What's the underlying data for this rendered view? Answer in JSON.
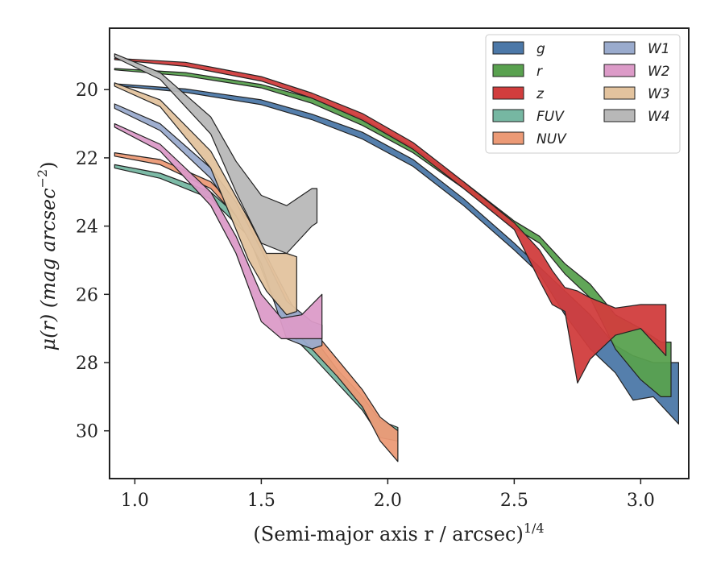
{
  "chart_data": {
    "type": "area",
    "xlabel": "(Semi-major axis r / arcsec)",
    "xlabel_exponent": "1/4",
    "ylabel": "μ(r) (mag arcsec",
    "ylabel_exponent": "−2",
    "ylabel_suffix": ")",
    "xlim": [
      0.9,
      3.19
    ],
    "ylim": [
      31.4,
      18.2
    ],
    "y_inverted": true,
    "x_ticks": [
      "1.0",
      "1.5",
      "2.0",
      "2.5",
      "3.0"
    ],
    "y_ticks": [
      "20",
      "22",
      "24",
      "26",
      "28",
      "30"
    ],
    "legend_placement": "top-right",
    "legend_columns": 2,
    "series": [
      {
        "name": "g",
        "color": "#4c78a8",
        "points": [
          [
            0.92,
            19.83,
            19.88
          ],
          [
            1.2,
            19.98,
            20.08
          ],
          [
            1.5,
            20.3,
            20.44
          ],
          [
            1.7,
            20.72,
            20.88
          ],
          [
            1.9,
            21.25,
            21.45
          ],
          [
            2.1,
            22.05,
            22.25
          ],
          [
            2.3,
            23.2,
            23.4
          ],
          [
            2.5,
            24.5,
            24.7
          ],
          [
            2.6,
            25.2,
            25.4
          ],
          [
            2.7,
            25.9,
            26.6
          ],
          [
            2.8,
            26.6,
            27.6
          ],
          [
            2.9,
            27.5,
            28.3
          ],
          [
            2.97,
            27.8,
            29.1
          ],
          [
            3.05,
            28.0,
            29.0
          ],
          [
            3.15,
            28.0,
            29.8
          ]
        ]
      },
      {
        "name": "r",
        "color": "#59a14f",
        "points": [
          [
            0.92,
            19.38,
            19.42
          ],
          [
            1.2,
            19.5,
            19.6
          ],
          [
            1.5,
            19.85,
            19.95
          ],
          [
            1.7,
            20.25,
            20.4
          ],
          [
            1.9,
            20.85,
            21.05
          ],
          [
            2.1,
            21.7,
            21.85
          ],
          [
            2.3,
            22.7,
            22.9
          ],
          [
            2.5,
            23.85,
            24.05
          ],
          [
            2.6,
            24.3,
            24.5
          ],
          [
            2.7,
            25.1,
            25.4
          ],
          [
            2.8,
            25.7,
            26.1
          ],
          [
            2.9,
            26.6,
            27.6
          ],
          [
            3.0,
            27.0,
            28.5
          ],
          [
            3.08,
            27.4,
            29.0
          ],
          [
            3.12,
            27.4,
            29.0
          ]
        ]
      },
      {
        "name": "z",
        "color": "#d13d3d",
        "points": [
          [
            0.92,
            19.08,
            19.12
          ],
          [
            1.2,
            19.2,
            19.32
          ],
          [
            1.5,
            19.62,
            19.75
          ],
          [
            1.7,
            20.1,
            20.25
          ],
          [
            1.9,
            20.7,
            20.9
          ],
          [
            2.1,
            21.55,
            21.75
          ],
          [
            2.3,
            22.7,
            22.9
          ],
          [
            2.5,
            23.9,
            24.1
          ],
          [
            2.6,
            24.7,
            25.6
          ],
          [
            2.65,
            25.3,
            26.3
          ],
          [
            2.7,
            25.8,
            26.5
          ],
          [
            2.75,
            25.9,
            28.6
          ],
          [
            2.8,
            26.1,
            27.9
          ],
          [
            2.9,
            26.4,
            27.2
          ],
          [
            3.0,
            26.3,
            27.0
          ],
          [
            3.1,
            26.3,
            27.8
          ]
        ]
      },
      {
        "name": "FUV",
        "color": "#76b7a2",
        "points": [
          [
            0.92,
            22.2,
            22.3
          ],
          [
            1.1,
            22.45,
            22.6
          ],
          [
            1.3,
            23.0,
            23.2
          ],
          [
            1.45,
            24.0,
            24.3
          ],
          [
            1.55,
            25.5,
            26.2
          ],
          [
            1.62,
            26.4,
            27.2
          ],
          [
            1.7,
            27.2,
            27.8
          ],
          [
            1.8,
            28.2,
            28.6
          ],
          [
            1.9,
            29.0,
            29.4
          ],
          [
            1.97,
            29.7,
            30.2
          ],
          [
            2.04,
            29.9,
            30.3
          ]
        ]
      },
      {
        "name": "NUV",
        "color": "#ec9a76",
        "points": [
          [
            0.92,
            21.85,
            21.95
          ],
          [
            1.1,
            22.05,
            22.2
          ],
          [
            1.3,
            22.7,
            22.9
          ],
          [
            1.45,
            23.8,
            24.1
          ],
          [
            1.55,
            25.3,
            26.1
          ],
          [
            1.62,
            26.3,
            27.0
          ],
          [
            1.7,
            27.0,
            27.6
          ],
          [
            1.8,
            27.9,
            28.4
          ],
          [
            1.9,
            28.8,
            29.3
          ],
          [
            1.97,
            29.6,
            30.3
          ],
          [
            2.04,
            30.0,
            30.9
          ]
        ]
      },
      {
        "name": "W1",
        "color": "#9aabcd",
        "points": [
          [
            0.92,
            20.42,
            20.55
          ],
          [
            1.1,
            21.0,
            21.2
          ],
          [
            1.3,
            22.3,
            22.6
          ],
          [
            1.4,
            23.3,
            23.7
          ],
          [
            1.5,
            24.7,
            25.1
          ],
          [
            1.6,
            26.2,
            27.3
          ],
          [
            1.7,
            26.8,
            27.6
          ],
          [
            1.74,
            26.9,
            27.5
          ]
        ]
      },
      {
        "name": "W2",
        "color": "#dc9bc8",
        "points": [
          [
            0.92,
            21.0,
            21.1
          ],
          [
            1.1,
            21.6,
            21.8
          ],
          [
            1.3,
            23.0,
            23.4
          ],
          [
            1.4,
            24.3,
            24.8
          ],
          [
            1.5,
            26.0,
            26.8
          ],
          [
            1.58,
            26.7,
            27.3
          ],
          [
            1.66,
            26.6,
            27.3
          ],
          [
            1.74,
            26.0,
            27.3
          ]
        ]
      },
      {
        "name": "W3",
        "color": "#e3c39e",
        "points": [
          [
            0.92,
            19.8,
            19.9
          ],
          [
            1.1,
            20.3,
            20.5
          ],
          [
            1.3,
            21.8,
            22.3
          ],
          [
            1.45,
            23.8,
            25.0
          ],
          [
            1.52,
            24.8,
            25.9
          ],
          [
            1.6,
            24.8,
            26.6
          ],
          [
            1.64,
            24.9,
            26.5
          ]
        ]
      },
      {
        "name": "W4",
        "color": "#b8b8b8",
        "points": [
          [
            0.92,
            18.95,
            19.05
          ],
          [
            1.1,
            19.5,
            19.7
          ],
          [
            1.3,
            20.8,
            21.3
          ],
          [
            1.4,
            22.1,
            23.0
          ],
          [
            1.5,
            23.1,
            24.5
          ],
          [
            1.6,
            23.4,
            24.8
          ],
          [
            1.7,
            22.9,
            24.0
          ],
          [
            1.72,
            22.9,
            23.9
          ]
        ]
      }
    ]
  }
}
